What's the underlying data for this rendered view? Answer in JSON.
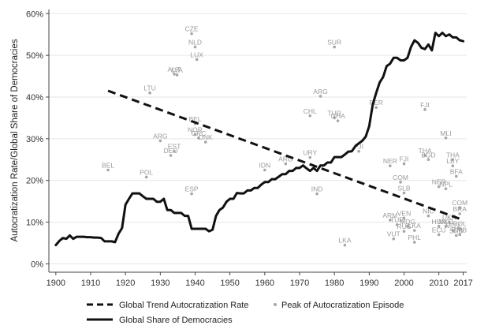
{
  "chart_data": {
    "type": "line",
    "title": "",
    "xlabel": "",
    "ylabel": "Autocratization Rate/Global Share of Democracies",
    "xlim": [
      1898,
      2018
    ],
    "ylim": [
      -2,
      61
    ],
    "xticks": [
      "1900",
      "1910",
      "1920",
      "1930",
      "1940",
      "1950",
      "1960",
      "1970",
      "1980",
      "1990",
      "2000",
      "2010",
      "2017"
    ],
    "xtick_values": [
      1900,
      1910,
      1920,
      1930,
      1940,
      1950,
      1960,
      1970,
      1980,
      1990,
      2000,
      2010,
      2017
    ],
    "yticks": [
      "0%",
      "10%",
      "20%",
      "30%",
      "40%",
      "50%",
      "60%"
    ],
    "ytick_values": [
      0,
      10,
      20,
      30,
      40,
      50,
      60
    ],
    "grid": "horizontal",
    "legend_position": "bottom",
    "colors": {
      "line": "#111111",
      "points": "#a6a6a6",
      "grid": "#e6e6e6",
      "axis": "#444444"
    },
    "series": [
      {
        "name": "Global Share of Democracies",
        "style": "solid",
        "x": [
          1900,
          1901,
          1902,
          1903,
          1904,
          1905,
          1906,
          1907,
          1908,
          1909,
          1910,
          1911,
          1912,
          1913,
          1914,
          1915,
          1916,
          1917,
          1918,
          1919,
          1920,
          1921,
          1922,
          1923,
          1924,
          1925,
          1926,
          1927,
          1928,
          1929,
          1930,
          1931,
          1932,
          1933,
          1934,
          1935,
          1936,
          1937,
          1938,
          1939,
          1940,
          1941,
          1942,
          1943,
          1944,
          1945,
          1946,
          1947,
          1948,
          1949,
          1950,
          1951,
          1952,
          1953,
          1954,
          1955,
          1956,
          1957,
          1958,
          1959,
          1960,
          1961,
          1962,
          1963,
          1964,
          1965,
          1966,
          1967,
          1968,
          1969,
          1970,
          1971,
          1972,
          1973,
          1974,
          1975,
          1976,
          1977,
          1978,
          1979,
          1980,
          1981,
          1982,
          1983,
          1984,
          1985,
          1986,
          1987,
          1988,
          1989,
          1990,
          1991,
          1992,
          1993,
          1994,
          1995,
          1996,
          1997,
          1998,
          1999,
          2000,
          2001,
          2002,
          2003,
          2004,
          2005,
          2006,
          2007,
          2008,
          2009,
          2010,
          2011,
          2012,
          2013,
          2014,
          2015,
          2016,
          2017
        ],
        "values": [
          4.5,
          5.5,
          6.2,
          6.0,
          6.8,
          6.0,
          6.5,
          6.5,
          6.5,
          6.4,
          6.4,
          6.3,
          6.3,
          6.2,
          5.4,
          5.4,
          5.4,
          5.2,
          7.2,
          8.6,
          14.2,
          15.6,
          16.9,
          16.9,
          16.9,
          16.2,
          15.6,
          15.6,
          15.6,
          14.9,
          14.9,
          15.6,
          12.9,
          12.9,
          12.2,
          12.2,
          12.2,
          11.5,
          11.5,
          8.4,
          8.4,
          8.4,
          8.4,
          8.4,
          7.8,
          8.2,
          11.5,
          12.9,
          13.5,
          14.9,
          15.6,
          15.6,
          17.0,
          16.9,
          16.9,
          17.6,
          17.6,
          18.2,
          18.2,
          19.0,
          19.6,
          19.6,
          20.3,
          20.3,
          20.9,
          21.5,
          21.5,
          22.3,
          22.3,
          23.0,
          23.0,
          23.6,
          22.9,
          22.3,
          23.0,
          22.3,
          23.6,
          23.6,
          24.3,
          24.3,
          25.6,
          25.6,
          25.6,
          26.2,
          26.9,
          27.0,
          28.2,
          28.9,
          29.5,
          30.5,
          33.0,
          38.2,
          41.0,
          43.5,
          44.8,
          47.4,
          48.0,
          49.4,
          49.4,
          48.8,
          48.8,
          49.4,
          52.0,
          53.6,
          53.0,
          51.8,
          51.5,
          52.6,
          51.2,
          55.4,
          54.6,
          55.4,
          54.6,
          55.0,
          54.3,
          54.3,
          53.6,
          53.4
        ]
      },
      {
        "name": "Global Trend Autocratization Rate",
        "style": "dashed",
        "x": [
          1915,
          2017
        ],
        "values": [
          41.5,
          10.5
        ]
      },
      {
        "name": "Peak of Autocratization Episode",
        "style": "scatter",
        "points": [
          {
            "label": "CZE",
            "x": 1939,
            "y": 55.2
          },
          {
            "label": "NLD",
            "x": 1940,
            "y": 52.0
          },
          {
            "label": "LUX",
            "x": 1940.5,
            "y": 49.0
          },
          {
            "label": "AUT",
            "x": 1934,
            "y": 45.5
          },
          {
            "label": "LVA",
            "x": 1934.8,
            "y": 45.3
          },
          {
            "label": "LTU",
            "x": 1927,
            "y": 41.0
          },
          {
            "label": "BEL",
            "x": 1940,
            "y": 33.6
          },
          {
            "label": "NOR",
            "x": 1940,
            "y": 31.0
          },
          {
            "label": "DEU",
            "x": 1933,
            "y": 26.0
          },
          {
            "label": "EST",
            "x": 1934,
            "y": 27.0
          },
          {
            "label": "ARG",
            "x": 1930,
            "y": 29.5
          },
          {
            "label": "GRC",
            "x": 1941,
            "y": 30.2
          },
          {
            "label": "DNK",
            "x": 1943,
            "y": 29.2
          },
          {
            "label": "BEL",
            "x": 1915,
            "y": 22.5
          },
          {
            "label": "POL",
            "x": 1926,
            "y": 20.8
          },
          {
            "label": "ESP",
            "x": 1939,
            "y": 16.8
          },
          {
            "label": "IDN",
            "x": 1960,
            "y": 22.5
          },
          {
            "label": "ARG",
            "x": 1966,
            "y": 24.0
          },
          {
            "label": "URY",
            "x": 1973,
            "y": 25.5
          },
          {
            "label": "IND",
            "x": 1975,
            "y": 16.8
          },
          {
            "label": "CHL",
            "x": 1973,
            "y": 35.5
          },
          {
            "label": "TUR",
            "x": 1980,
            "y": 35.0
          },
          {
            "label": "GHA",
            "x": 1981,
            "y": 34.3
          },
          {
            "label": "ARG",
            "x": 1976,
            "y": 40.2
          },
          {
            "label": "SUR",
            "x": 1980,
            "y": 52.0
          },
          {
            "label": "FJI",
            "x": 1987,
            "y": 27.0
          },
          {
            "label": "PER",
            "x": 1992,
            "y": 37.5
          },
          {
            "label": "LKA",
            "x": 1983,
            "y": 4.5
          },
          {
            "label": "FJI",
            "x": 2006,
            "y": 37.0
          },
          {
            "label": "MLI",
            "x": 2012,
            "y": 30.2
          },
          {
            "label": "THA",
            "x": 2006,
            "y": 26.0
          },
          {
            "label": "BGD",
            "x": 2007,
            "y": 25.0
          },
          {
            "label": "THA",
            "x": 2014,
            "y": 25.0
          },
          {
            "label": "BFA",
            "x": 2015,
            "y": 21.0
          },
          {
            "label": "LBY",
            "x": 2014,
            "y": 23.5
          },
          {
            "label": "NER",
            "x": 1996,
            "y": 23.5
          },
          {
            "label": "FJI",
            "x": 2000,
            "y": 24.0
          },
          {
            "label": "COM",
            "x": 1999,
            "y": 19.6
          },
          {
            "label": "NER",
            "x": 2010,
            "y": 18.5
          },
          {
            "label": "NPL",
            "x": 2012,
            "y": 18.0
          },
          {
            "label": "SLB",
            "x": 2000,
            "y": 17.0
          },
          {
            "label": "COM",
            "x": 2016,
            "y": 13.5
          },
          {
            "label": "NIC",
            "x": 2007,
            "y": 11.5
          },
          {
            "label": "BRA",
            "x": 2016,
            "y": 12.0
          },
          {
            "label": "ARM",
            "x": 1996,
            "y": 10.5
          },
          {
            "label": "VEN",
            "x": 2000,
            "y": 11.0
          },
          {
            "label": "TUR",
            "x": 1998,
            "y": 9.4
          },
          {
            "label": "MDG",
            "x": 2001,
            "y": 9.0
          },
          {
            "label": "LKA",
            "x": 2003,
            "y": 8.0
          },
          {
            "label": "RUS",
            "x": 2000,
            "y": 7.8
          },
          {
            "label": "VUT",
            "x": 1997,
            "y": 6.0
          },
          {
            "label": "PHL",
            "x": 2003,
            "y": 5.2
          },
          {
            "label": "MDV",
            "x": 2014,
            "y": 8.0
          },
          {
            "label": "UKR",
            "x": 2013,
            "y": 10.0
          },
          {
            "label": "MKD",
            "x": 2012,
            "y": 9.0
          },
          {
            "label": "ECU",
            "x": 2010,
            "y": 7.0
          },
          {
            "label": "POL",
            "x": 2016,
            "y": 8.5
          },
          {
            "label": "SRB",
            "x": 2015,
            "y": 6.8
          },
          {
            "label": "HUN",
            "x": 2010,
            "y": 9.0
          },
          {
            "label": "ZMB",
            "x": 2016,
            "y": 7.0
          }
        ]
      }
    ],
    "legend": [
      "Global Trend Autocratization Rate",
      "Peak of Autocratization Episode",
      "Global Share of Democracies"
    ]
  }
}
